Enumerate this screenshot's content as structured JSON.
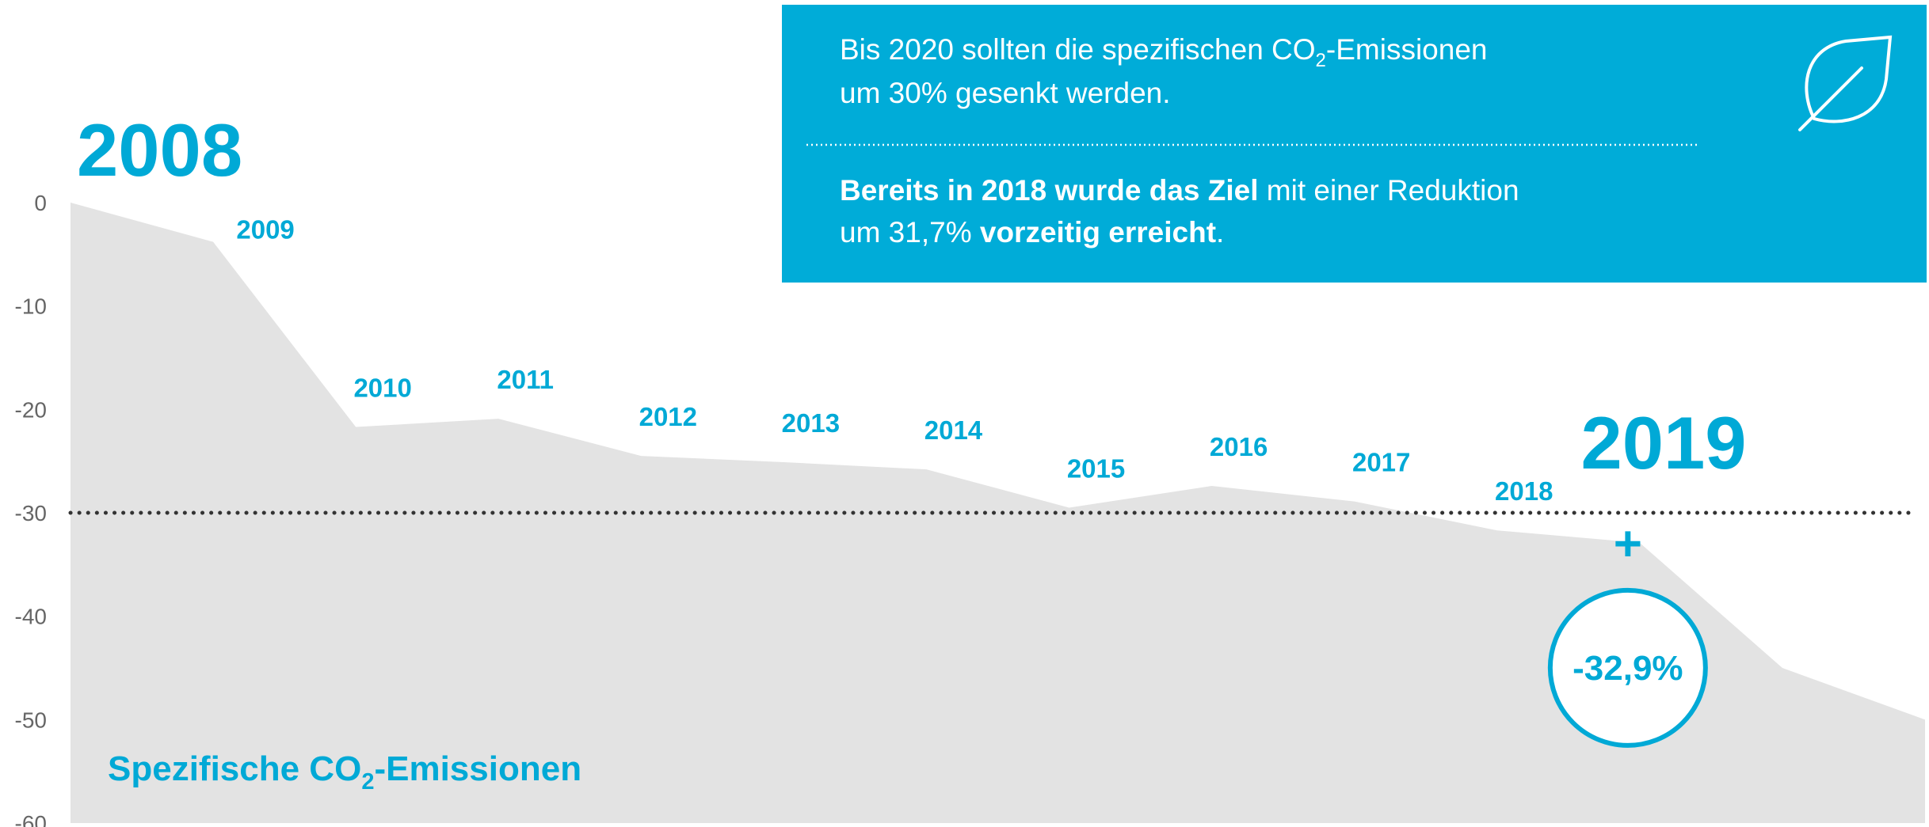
{
  "chart_data": {
    "type": "area",
    "series_label": [
      "Spezifische CO",
      "2",
      "-Emissionen"
    ],
    "categories": [
      "2008",
      "2009",
      "2010",
      "2011",
      "2012",
      "2013",
      "2014",
      "2015",
      "2016",
      "2017",
      "2018",
      "2019",
      null,
      null
    ],
    "values": [
      0,
      -3.8,
      -21.7,
      -20.9,
      -24.5,
      -25.1,
      -25.8,
      -29.5,
      -27.4,
      -28.9,
      -31.7,
      -32.9,
      -45,
      -50
    ],
    "value_labels": [
      null,
      null,
      null,
      null,
      null,
      null,
      null,
      null,
      null,
      null,
      null,
      "-32,9%",
      null,
      null
    ],
    "highlight_marker": "+",
    "color": "#e3e3e3",
    "accent_color": "#00a9d6",
    "ylim": [
      -60,
      0
    ],
    "yticks": [
      0,
      -10,
      -20,
      -30,
      -40,
      -50,
      -60
    ],
    "reference_line": -30,
    "info_box": {
      "line1": [
        "Bis 2020 sollten die spezifischen CO",
        "2",
        "-Emissionen"
      ],
      "line2": "um 30% gesenkt werden.",
      "line3": [
        "Bereits in 2018 wurde das Ziel",
        " mit einer Reduktion"
      ],
      "line4": [
        "um 31,7% ",
        "vorzeitig erreicht",
        "."
      ]
    }
  }
}
